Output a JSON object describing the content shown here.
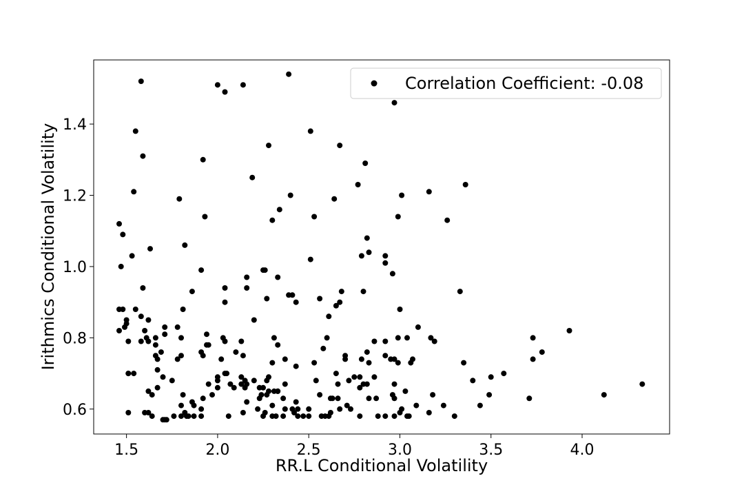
{
  "chart_data": {
    "type": "scatter",
    "xlabel": "RR.L Conditional Volatility",
    "ylabel": "Irithmics Conditional Volatility",
    "xlim": [
      1.32,
      4.48
    ],
    "ylim": [
      0.53,
      1.58
    ],
    "xticks": [
      1.5,
      2.0,
      2.5,
      3.0,
      3.5,
      4.0
    ],
    "yticks": [
      0.6,
      0.8,
      1.0,
      1.2,
      1.4
    ],
    "xtick_labels": [
      "1.5",
      "2.0",
      "2.5",
      "3.0",
      "3.5",
      "4.0"
    ],
    "ytick_labels": [
      "0.6",
      "0.8",
      "1.0",
      "1.2",
      "1.4"
    ],
    "grid": false,
    "legend": {
      "placement": "top-right",
      "label": "Correlation Coefficient: -0.08"
    },
    "marker_color": "#000000",
    "points": [
      [
        1.58,
        1.52
      ],
      [
        2.0,
        1.51
      ],
      [
        2.14,
        1.51
      ],
      [
        2.04,
        1.49
      ],
      [
        2.39,
        1.54
      ],
      [
        2.97,
        1.46
      ],
      [
        1.55,
        1.38
      ],
      [
        2.51,
        1.38
      ],
      [
        1.59,
        1.31
      ],
      [
        2.28,
        1.34
      ],
      [
        2.67,
        1.34
      ],
      [
        1.92,
        1.3
      ],
      [
        2.81,
        1.29
      ],
      [
        2.19,
        1.25
      ],
      [
        2.77,
        1.23
      ],
      [
        3.36,
        1.23
      ],
      [
        1.54,
        1.21
      ],
      [
        3.16,
        1.21
      ],
      [
        2.4,
        1.2
      ],
      [
        3.01,
        1.2
      ],
      [
        2.64,
        1.19
      ],
      [
        1.79,
        1.19
      ],
      [
        2.34,
        1.16
      ],
      [
        1.93,
        1.14
      ],
      [
        2.53,
        1.14
      ],
      [
        2.99,
        1.14
      ],
      [
        3.26,
        1.13
      ],
      [
        2.3,
        1.13
      ],
      [
        1.46,
        1.12
      ],
      [
        1.48,
        1.09
      ],
      [
        2.82,
        1.08
      ],
      [
        1.82,
        1.06
      ],
      [
        1.63,
        1.05
      ],
      [
        2.83,
        1.04
      ],
      [
        1.53,
        1.03
      ],
      [
        2.79,
        1.03
      ],
      [
        2.92,
        1.03
      ],
      [
        2.51,
        1.02
      ],
      [
        2.92,
        1.01
      ],
      [
        1.47,
        1.0
      ],
      [
        2.26,
        0.99
      ],
      [
        2.25,
        0.99
      ],
      [
        1.91,
        0.99
      ],
      [
        2.96,
        0.98
      ],
      [
        2.33,
        0.97
      ],
      [
        2.16,
        0.97
      ],
      [
        2.04,
        0.94
      ],
      [
        2.16,
        0.94
      ],
      [
        1.59,
        0.94
      ],
      [
        3.33,
        0.93
      ],
      [
        1.86,
        0.93
      ],
      [
        2.68,
        0.93
      ],
      [
        2.8,
        0.93
      ],
      [
        2.41,
        0.92
      ],
      [
        2.39,
        0.92
      ],
      [
        2.27,
        0.91
      ],
      [
        2.56,
        0.91
      ],
      [
        2.67,
        0.9
      ],
      [
        2.43,
        0.9
      ],
      [
        2.04,
        0.9
      ],
      [
        2.65,
        0.89
      ],
      [
        3.0,
        0.88
      ],
      [
        1.46,
        0.88
      ],
      [
        1.48,
        0.88
      ],
      [
        1.55,
        0.88
      ],
      [
        1.81,
        0.88
      ],
      [
        1.58,
        0.86
      ],
      [
        2.61,
        0.86
      ],
      [
        1.5,
        0.85
      ],
      [
        1.62,
        0.85
      ],
      [
        2.2,
        0.85
      ],
      [
        1.5,
        0.84
      ],
      [
        1.49,
        0.83
      ],
      [
        1.71,
        0.83
      ],
      [
        1.78,
        0.83
      ],
      [
        3.1,
        0.83
      ],
      [
        1.46,
        0.82
      ],
      [
        1.6,
        0.82
      ],
      [
        3.93,
        0.82
      ],
      [
        1.71,
        0.81
      ],
      [
        1.94,
        0.81
      ],
      [
        1.61,
        0.8
      ],
      [
        3.73,
        0.8
      ],
      [
        2.6,
        0.8
      ],
      [
        2.03,
        0.8
      ],
      [
        1.8,
        0.8
      ],
      [
        2.99,
        0.8
      ],
      [
        3.04,
        0.8
      ],
      [
        1.66,
        0.8
      ],
      [
        1.62,
        0.79
      ],
      [
        2.31,
        0.8
      ],
      [
        3.17,
        0.8
      ],
      [
        1.51,
        0.79
      ],
      [
        1.58,
        0.79
      ],
      [
        2.04,
        0.79
      ],
      [
        2.13,
        0.79
      ],
      [
        2.33,
        0.78
      ],
      [
        2.86,
        0.79
      ],
      [
        2.92,
        0.79
      ],
      [
        3.19,
        0.79
      ],
      [
        1.94,
        0.78
      ],
      [
        1.95,
        0.78
      ],
      [
        1.66,
        0.78
      ],
      [
        1.69,
        0.76
      ],
      [
        2.58,
        0.77
      ],
      [
        1.91,
        0.76
      ],
      [
        2.1,
        0.76
      ],
      [
        2.82,
        0.76
      ],
      [
        3.78,
        0.76
      ],
      [
        1.92,
        0.75
      ],
      [
        2.14,
        0.75
      ],
      [
        2.7,
        0.75
      ],
      [
        2.92,
        0.75
      ],
      [
        1.66,
        0.75
      ],
      [
        1.67,
        0.74
      ],
      [
        1.78,
        0.74
      ],
      [
        1.8,
        0.75
      ],
      [
        2.02,
        0.74
      ],
      [
        2.37,
        0.74
      ],
      [
        2.7,
        0.74
      ],
      [
        2.95,
        0.74
      ],
      [
        3.07,
        0.74
      ],
      [
        3.73,
        0.74
      ],
      [
        2.97,
        0.74
      ],
      [
        2.79,
        0.74
      ],
      [
        3.35,
        0.73
      ],
      [
        2.3,
        0.73
      ],
      [
        2.83,
        0.73
      ],
      [
        2.99,
        0.73
      ],
      [
        3.06,
        0.73
      ],
      [
        2.53,
        0.73
      ],
      [
        2.43,
        0.72
      ],
      [
        1.67,
        0.71
      ],
      [
        2.04,
        0.7
      ],
      [
        2.05,
        0.7
      ],
      [
        2.65,
        0.7
      ],
      [
        1.51,
        0.7
      ],
      [
        1.54,
        0.7
      ],
      [
        3.57,
        0.7
      ],
      [
        1.51,
        0.7
      ],
      [
        1.7,
        0.69
      ],
      [
        2.0,
        0.69
      ],
      [
        2.13,
        0.69
      ],
      [
        2.28,
        0.69
      ],
      [
        2.72,
        0.68
      ],
      [
        2.75,
        0.69
      ],
      [
        2.78,
        0.69
      ],
      [
        3.4,
        0.68
      ],
      [
        3.5,
        0.69
      ],
      [
        2.86,
        0.69
      ],
      [
        1.75,
        0.68
      ],
      [
        2.15,
        0.68
      ],
      [
        2.2,
        0.68
      ],
      [
        2.54,
        0.68
      ],
      [
        2.0,
        0.68
      ],
      [
        2.27,
        0.68
      ],
      [
        2.16,
        0.67
      ],
      [
        1.95,
        0.67
      ],
      [
        2.37,
        0.67
      ],
      [
        2.66,
        0.67
      ],
      [
        2.8,
        0.67
      ],
      [
        2.97,
        0.67
      ],
      [
        4.33,
        0.67
      ],
      [
        2.07,
        0.67
      ],
      [
        2.13,
        0.67
      ],
      [
        2.25,
        0.66
      ],
      [
        2.82,
        0.67
      ],
      [
        2.23,
        0.66
      ],
      [
        2.15,
        0.66
      ],
      [
        2.09,
        0.66
      ],
      [
        1.67,
        0.66
      ],
      [
        2.0,
        0.66
      ],
      [
        2.78,
        0.66
      ],
      [
        2.33,
        0.65
      ],
      [
        2.31,
        0.65
      ],
      [
        2.28,
        0.65
      ],
      [
        2.33,
        0.65
      ],
      [
        3.03,
        0.65
      ],
      [
        1.62,
        0.65
      ],
      [
        4.12,
        0.64
      ],
      [
        1.64,
        0.64
      ],
      [
        1.81,
        0.64
      ],
      [
        1.97,
        0.64
      ],
      [
        2.24,
        0.64
      ],
      [
        2.27,
        0.64
      ],
      [
        2.56,
        0.64
      ],
      [
        2.62,
        0.63
      ],
      [
        2.63,
        0.63
      ],
      [
        2.96,
        0.64
      ],
      [
        2.97,
        0.63
      ],
      [
        3.18,
        0.64
      ],
      [
        3.49,
        0.64
      ],
      [
        3.71,
        0.63
      ],
      [
        2.23,
        0.63
      ],
      [
        1.92,
        0.63
      ],
      [
        1.86,
        0.62
      ],
      [
        2.36,
        0.63
      ],
      [
        2.66,
        0.63
      ],
      [
        2.83,
        0.63
      ],
      [
        2.87,
        0.63
      ],
      [
        2.16,
        0.62
      ],
      [
        2.43,
        0.62
      ],
      [
        1.8,
        0.61
      ],
      [
        1.87,
        0.61
      ],
      [
        3.44,
        0.61
      ],
      [
        3.09,
        0.61
      ],
      [
        3.24,
        0.61
      ],
      [
        2.71,
        0.61
      ],
      [
        2.3,
        0.61
      ],
      [
        2.41,
        0.6
      ],
      [
        2.44,
        0.6
      ],
      [
        1.91,
        0.6
      ],
      [
        2.22,
        0.6
      ],
      [
        2.37,
        0.6
      ],
      [
        2.73,
        0.6
      ],
      [
        3.01,
        0.6
      ],
      [
        2.5,
        0.6
      ],
      [
        2.42,
        0.59
      ],
      [
        2.67,
        0.6
      ],
      [
        3.0,
        0.59
      ],
      [
        1.6,
        0.59
      ],
      [
        1.62,
        0.59
      ],
      [
        1.82,
        0.59
      ],
      [
        2.26,
        0.59
      ],
      [
        3.16,
        0.59
      ],
      [
        1.76,
        0.58
      ],
      [
        1.8,
        0.58
      ],
      [
        1.84,
        0.58
      ],
      [
        1.87,
        0.58
      ],
      [
        2.06,
        0.58
      ],
      [
        2.14,
        0.59
      ],
      [
        1.51,
        0.59
      ],
      [
        1.64,
        0.58
      ],
      [
        1.83,
        0.58
      ],
      [
        1.7,
        0.57
      ],
      [
        1.71,
        0.57
      ],
      [
        1.72,
        0.57
      ],
      [
        1.91,
        0.58
      ],
      [
        2.25,
        0.58
      ],
      [
        2.3,
        0.58
      ],
      [
        2.32,
        0.58
      ],
      [
        2.36,
        0.58
      ],
      [
        2.44,
        0.58
      ],
      [
        2.59,
        0.58
      ],
      [
        2.61,
        0.58
      ],
      [
        2.78,
        0.58
      ],
      [
        2.88,
        0.58
      ],
      [
        2.97,
        0.58
      ],
      [
        3.04,
        0.58
      ],
      [
        3.05,
        0.58
      ],
      [
        3.3,
        0.58
      ],
      [
        2.5,
        0.58
      ],
      [
        2.62,
        0.59
      ],
      [
        2.92,
        0.58
      ],
      [
        2.57,
        0.58
      ],
      [
        2.47,
        0.58
      ]
    ]
  }
}
